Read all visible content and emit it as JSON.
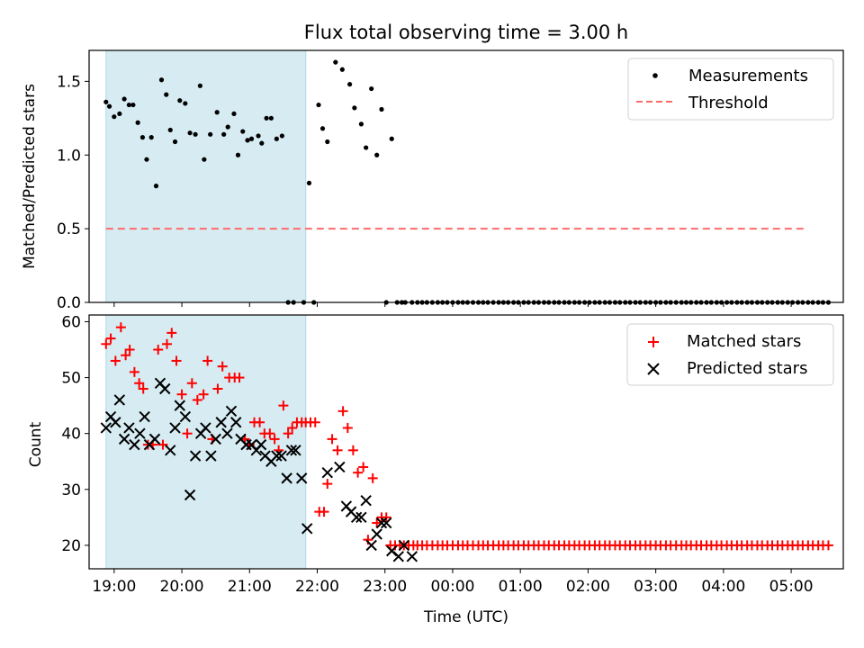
{
  "chart_data": [
    {
      "type": "scatter",
      "title": "Flux total observing time = 3.00 h",
      "xlabel": "",
      "ylabel": "Matched/Predicted stars",
      "xlim": [
        18.63,
        29.77
      ],
      "ylim": [
        0.0,
        1.71
      ],
      "yticks": [
        0.0,
        0.5,
        1.0,
        1.5
      ],
      "ytick_labels": [
        "0.0",
        "0.5",
        "1.0",
        "1.5"
      ],
      "shaded_span": {
        "x0": 18.88,
        "x1": 21.83,
        "color": "#add8e6"
      },
      "legend": {
        "position": "top-right",
        "entries": [
          "Measurements",
          "Threshold"
        ]
      },
      "series": [
        {
          "name": "Measurements",
          "marker": "dot",
          "color": "#000000",
          "x": [
            18.88,
            18.93,
            19.0,
            19.08,
            19.15,
            19.22,
            19.28,
            19.35,
            19.42,
            19.48,
            19.55,
            19.62,
            19.7,
            19.77,
            19.83,
            19.9,
            19.97,
            20.05,
            20.12,
            20.2,
            20.27,
            20.33,
            20.42,
            20.52,
            20.62,
            20.68,
            20.77,
            20.83,
            20.9,
            20.97,
            21.03,
            21.13,
            21.18,
            21.25,
            21.32,
            21.4,
            21.48,
            21.57,
            21.65,
            21.8,
            21.88,
            21.95,
            22.02,
            22.08,
            22.15,
            22.27,
            22.37,
            22.48,
            22.55,
            22.65,
            22.72,
            22.8,
            22.88,
            22.95,
            23.02,
            23.1,
            23.18,
            23.25,
            23.3,
            23.4,
            23.48,
            23.55,
            23.62,
            23.7,
            23.78,
            23.85,
            23.92,
            24.0,
            24.08,
            24.15,
            24.22,
            24.3,
            24.38,
            24.45,
            24.52,
            24.6,
            24.68,
            24.75,
            24.82,
            24.9,
            24.97,
            25.05,
            25.12,
            25.2,
            25.27,
            25.35,
            25.42,
            25.5,
            25.57,
            25.65,
            25.72,
            25.8,
            25.87,
            25.95,
            26.02,
            26.1,
            26.17,
            26.25,
            26.32,
            26.4,
            26.47,
            26.55,
            26.62,
            26.7,
            26.77,
            26.85,
            26.92,
            27.0,
            27.07,
            27.15,
            27.22,
            27.3,
            27.38,
            27.45,
            27.52,
            27.6,
            27.67,
            27.75,
            27.82,
            27.9,
            27.97,
            28.05,
            28.12,
            28.2,
            28.27,
            28.35,
            28.42,
            28.5,
            28.57,
            28.65,
            28.72,
            28.8,
            28.87,
            28.95,
            29.02,
            29.1,
            29.17,
            29.25,
            29.32,
            29.4,
            29.47,
            29.55
          ],
          "y": [
            1.36,
            1.33,
            1.26,
            1.28,
            1.38,
            1.34,
            1.34,
            1.22,
            1.12,
            0.97,
            1.12,
            0.79,
            1.51,
            1.41,
            1.17,
            1.09,
            1.37,
            1.35,
            1.15,
            1.14,
            1.47,
            0.97,
            1.14,
            1.29,
            1.14,
            1.19,
            1.28,
            1.0,
            1.16,
            1.1,
            1.11,
            1.13,
            1.08,
            1.25,
            1.25,
            1.11,
            1.13,
            0.0,
            0.0,
            0.0,
            0.81,
            0.0,
            1.34,
            1.18,
            1.09,
            1.63,
            1.58,
            1.48,
            1.32,
            1.21,
            1.05,
            1.45,
            1.0,
            1.31,
            0.0,
            1.11,
            0.0,
            0.0,
            0.0,
            0.0,
            0.0,
            0.0,
            0.0,
            0.0,
            0.0,
            0.0,
            0.0,
            0.0,
            0.0,
            0.0,
            0.0,
            0.0,
            0.0,
            0.0,
            0.0,
            0.0,
            0.0,
            0.0,
            0.0,
            0.0,
            0.0,
            0.0,
            0.0,
            0.0,
            0.0,
            0.0,
            0.0,
            0.0,
            0.0,
            0.0,
            0.0,
            0.0,
            0.0,
            0.0,
            0.0,
            0.0,
            0.0,
            0.0,
            0.0,
            0.0,
            0.0,
            0.0,
            0.0,
            0.0,
            0.0,
            0.0,
            0.0,
            0.0,
            0.0,
            0.0,
            0.0,
            0.0,
            0.0,
            0.0,
            0.0,
            0.0,
            0.0,
            0.0,
            0.0,
            0.0,
            0.0,
            0.0,
            0.0,
            0.0,
            0.0,
            0.0,
            0.0,
            0.0,
            0.0,
            0.0,
            0.0,
            0.0,
            0.0,
            0.0,
            0.0,
            0.0,
            0.0,
            0.0,
            0.0,
            0.0,
            0.0,
            0.0
          ]
        },
        {
          "name": "Threshold",
          "style": "dashed-line",
          "color": "#ff6b6b",
          "x": [
            18.88,
            29.25
          ],
          "y": [
            0.5,
            0.5
          ]
        }
      ]
    },
    {
      "type": "scatter",
      "title": "",
      "xlabel": "Time (UTC)",
      "ylabel": "Count",
      "xlim": [
        18.63,
        29.77
      ],
      "ylim": [
        15.8,
        61.2
      ],
      "yticks": [
        20,
        30,
        40,
        50,
        60
      ],
      "ytick_labels": [
        "20",
        "30",
        "40",
        "50",
        "60"
      ],
      "xticks": [
        19,
        20,
        21,
        22,
        23,
        24,
        25,
        26,
        27,
        28,
        29
      ],
      "xtick_labels": [
        "19:00",
        "20:00",
        "21:00",
        "22:00",
        "23:00",
        "00:00",
        "01:00",
        "02:00",
        "03:00",
        "04:00",
        "05:00"
      ],
      "shaded_span": {
        "x0": 18.88,
        "x1": 21.83,
        "color": "#add8e6"
      },
      "legend": {
        "position": "top-right",
        "entries": [
          "Matched stars",
          "Predicted stars"
        ]
      },
      "series": [
        {
          "name": "Matched stars",
          "marker": "plus",
          "color": "#ff0000",
          "x": [
            18.88,
            18.95,
            19.02,
            19.1,
            19.17,
            19.23,
            19.3,
            19.37,
            19.43,
            19.5,
            19.57,
            19.65,
            19.72,
            19.78,
            19.85,
            19.92,
            20.0,
            20.08,
            20.15,
            20.23,
            20.32,
            20.38,
            20.45,
            20.53,
            20.6,
            20.7,
            20.78,
            20.85,
            20.93,
            21.0,
            21.07,
            21.15,
            21.22,
            21.3,
            21.37,
            21.43,
            21.5,
            21.57,
            21.63,
            21.7,
            21.77,
            21.83,
            21.9,
            21.97,
            22.03,
            22.1,
            22.15,
            22.22,
            22.3,
            22.38,
            22.45,
            22.53,
            22.6,
            22.68,
            22.75,
            22.82,
            22.88,
            22.95,
            23.02,
            23.08,
            23.15,
            23.22,
            23.28,
            23.35,
            23.42,
            23.48,
            23.55,
            23.62,
            23.7,
            23.78,
            23.85,
            23.92,
            24.0,
            24.08,
            24.15,
            24.22,
            24.3,
            24.38,
            24.45,
            24.52,
            24.6,
            24.68,
            24.75,
            24.82,
            24.9,
            24.97,
            25.05,
            25.12,
            25.2,
            25.27,
            25.35,
            25.42,
            25.5,
            25.57,
            25.65,
            25.72,
            25.8,
            25.87,
            25.95,
            26.02,
            26.1,
            26.17,
            26.25,
            26.32,
            26.4,
            26.47,
            26.55,
            26.62,
            26.7,
            26.77,
            26.85,
            26.92,
            27.0,
            27.07,
            27.15,
            27.22,
            27.3,
            27.38,
            27.45,
            27.52,
            27.6,
            27.67,
            27.75,
            27.82,
            27.9,
            27.97,
            28.05,
            28.12,
            28.2,
            28.27,
            28.35,
            28.42,
            28.5,
            28.57,
            28.65,
            28.72,
            28.8,
            28.87,
            28.95,
            29.02,
            29.1,
            29.17,
            29.25,
            29.32,
            29.4,
            29.47,
            29.55
          ],
          "y": [
            56,
            57,
            53,
            59,
            54,
            55,
            51,
            49,
            48,
            38,
            38,
            55,
            38,
            56,
            58,
            53,
            47,
            40,
            49,
            46,
            47,
            53,
            39,
            48,
            52,
            50,
            50,
            50,
            39,
            38,
            42,
            42,
            40,
            40,
            39,
            37,
            45,
            40,
            41,
            42,
            42,
            42,
            42,
            42,
            26,
            26,
            31,
            39,
            37,
            44,
            41,
            37,
            33,
            34,
            21,
            32,
            24,
            25,
            25,
            20,
            20,
            20,
            20,
            20,
            20,
            20,
            20,
            20,
            20,
            20,
            20,
            20,
            20,
            20,
            20,
            20,
            20,
            20,
            20,
            20,
            20,
            20,
            20,
            20,
            20,
            20,
            20,
            20,
            20,
            20,
            20,
            20,
            20,
            20,
            20,
            20,
            20,
            20,
            20,
            20,
            20,
            20,
            20,
            20,
            20,
            20,
            20,
            20,
            20,
            20,
            20,
            20,
            20,
            20,
            20,
            20,
            20,
            20,
            20,
            20,
            20,
            20,
            20,
            20,
            20,
            20,
            20,
            20,
            20,
            20,
            20,
            20,
            20,
            20,
            20,
            20,
            20,
            20,
            20,
            20,
            20,
            20,
            20,
            20,
            20,
            20,
            20
          ]
        },
        {
          "name": "Predicted stars",
          "marker": "x",
          "color": "#000000",
          "x": [
            18.88,
            18.95,
            19.02,
            19.08,
            19.15,
            19.22,
            19.3,
            19.38,
            19.45,
            19.52,
            19.6,
            19.68,
            19.75,
            19.83,
            19.9,
            19.97,
            20.05,
            20.12,
            20.2,
            20.28,
            20.35,
            20.43,
            20.5,
            20.58,
            20.67,
            20.73,
            20.8,
            20.87,
            20.95,
            21.03,
            21.1,
            21.17,
            21.23,
            21.32,
            21.4,
            21.47,
            21.55,
            21.62,
            21.68,
            21.77,
            21.85,
            22.15,
            22.33,
            22.43,
            22.5,
            22.58,
            22.65,
            22.72,
            22.8,
            22.88,
            22.95,
            23.02,
            23.1,
            23.2,
            23.28,
            23.4
          ],
          "y": [
            41,
            43,
            42,
            46,
            39,
            41,
            38,
            40,
            43,
            38,
            39,
            49,
            48,
            37,
            41,
            45,
            43,
            29,
            36,
            40,
            41,
            36,
            39,
            42,
            40,
            44,
            42,
            39,
            38,
            38,
            37,
            38,
            36,
            35,
            36,
            36,
            32,
            37,
            37,
            32,
            23,
            33,
            34,
            27,
            26,
            25,
            25,
            28,
            20,
            22,
            24,
            24,
            19,
            18,
            20,
            18
          ]
        }
      ]
    }
  ]
}
